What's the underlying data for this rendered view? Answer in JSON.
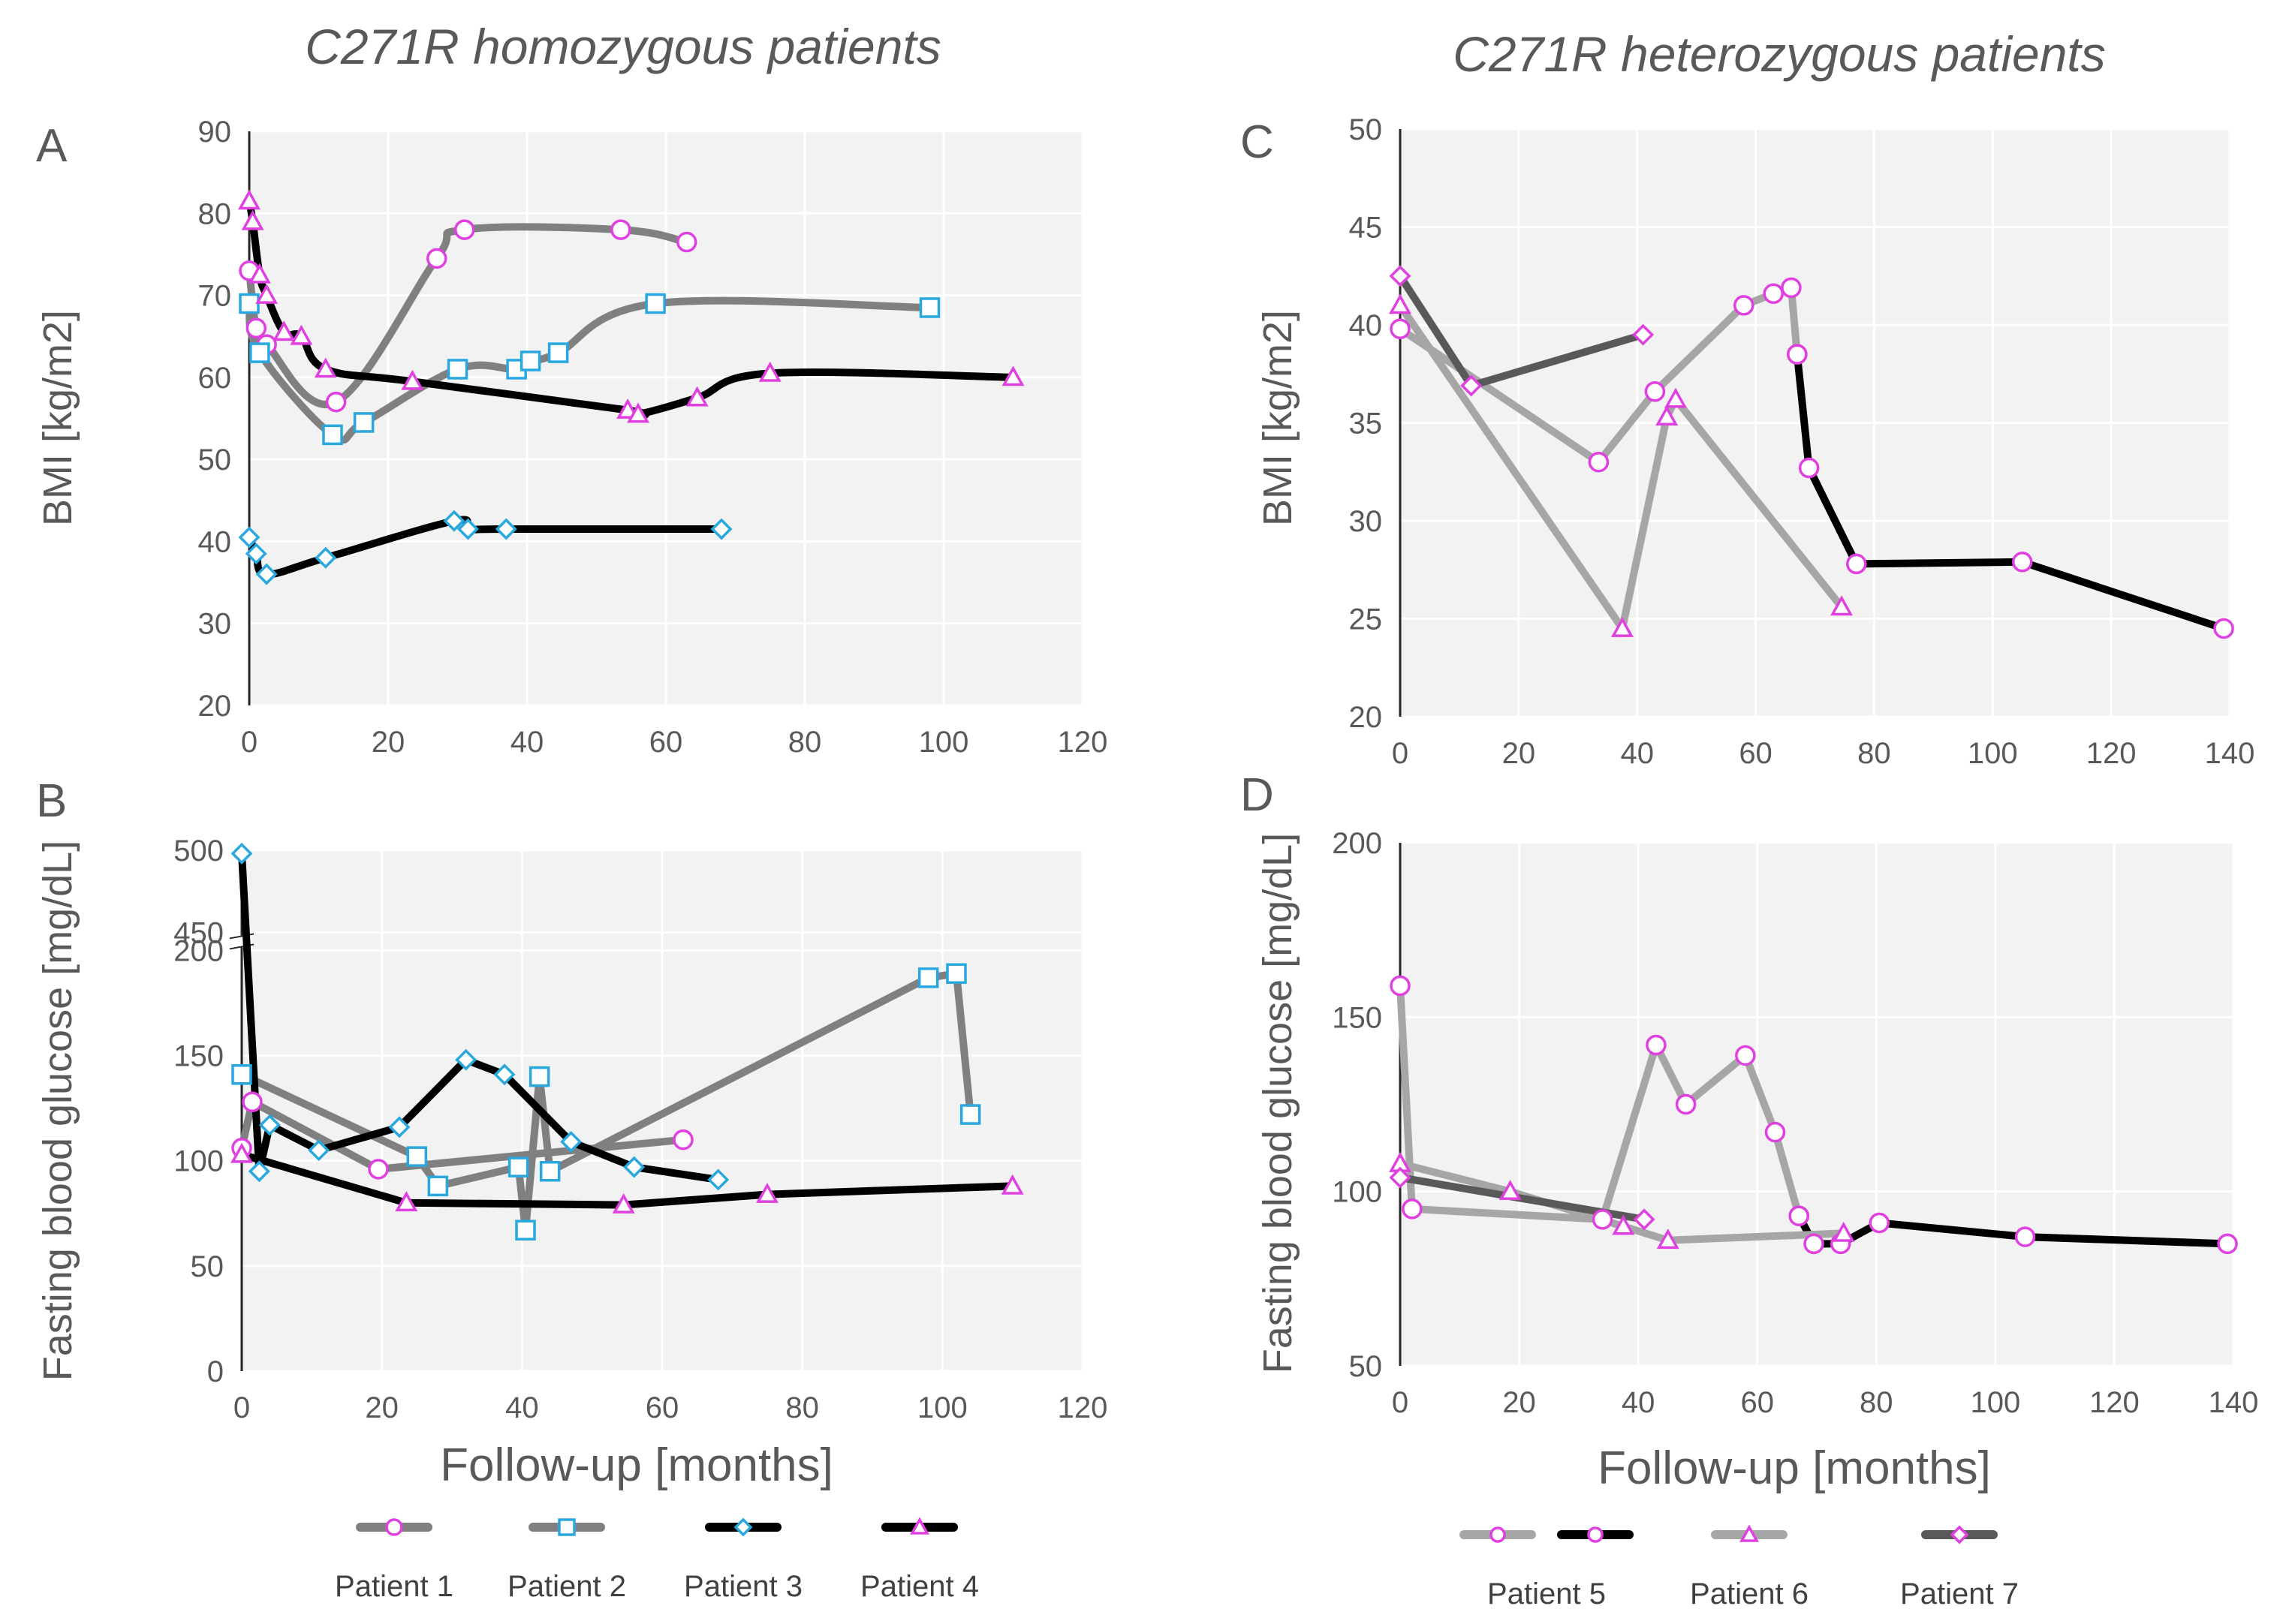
{
  "titles": {
    "homozygous": "C271R homozygous patients",
    "heterozygous": "C271R heterozygous patients"
  },
  "colors": {
    "plot_bg": "#f2f2f2",
    "gridline": "#ffffff",
    "axis": "#262626",
    "marker_edge_magenta": "#e040e0",
    "marker_edge_cyan": "#29a8e0",
    "line_black": "#000000",
    "line_dark_gray": "#595959",
    "line_mid_gray": "#808080",
    "line_light_gray": "#a6a6a6"
  },
  "legends": {
    "left": [
      {
        "label": "Patient 1",
        "marker": "circle",
        "line": "mid-gray",
        "edge": "magenta"
      },
      {
        "label": "Patient 2",
        "marker": "square",
        "line": "mid-gray",
        "edge": "cyan"
      },
      {
        "label": "Patient 3",
        "marker": "diamond",
        "line": "black",
        "edge": "cyan"
      },
      {
        "label": "Patient 4",
        "marker": "triangle",
        "line": "black",
        "edge": "magenta"
      }
    ],
    "right": [
      {
        "label": "Patient 5",
        "marker": "circle",
        "line": "light-gray+black",
        "edge": "magenta"
      },
      {
        "label": "Patient 6",
        "marker": "triangle",
        "line": "light-gray",
        "edge": "magenta"
      },
      {
        "label": "Patient 7",
        "marker": "diamond",
        "line": "dark-gray",
        "edge": "magenta"
      }
    ]
  },
  "chart_data": [
    {
      "panel": "A",
      "type": "line",
      "smooth": true,
      "xlabel": "",
      "ylabel": "BMI [kg/m2]",
      "xlim": [
        0,
        120
      ],
      "ylim": [
        20,
        90
      ],
      "xticks": [
        0,
        20,
        40,
        60,
        80,
        100,
        120
      ],
      "yticks": [
        20,
        30,
        40,
        50,
        60,
        70,
        80,
        90
      ],
      "series": [
        {
          "name": "Patient 1",
          "marker": "circle",
          "line": "mid-gray",
          "x": [
            0,
            1,
            2.5,
            12.5,
            27,
            31,
            53.5,
            63
          ],
          "y": [
            73,
            66,
            64,
            57,
            74.5,
            78,
            78,
            76.5
          ]
        },
        {
          "name": "Patient 2",
          "marker": "square",
          "line": "mid-gray",
          "x": [
            0,
            1.5,
            12,
            16.5,
            30,
            38.5,
            40.5,
            44.5,
            58.5,
            98
          ],
          "y": [
            69,
            63,
            53,
            54.5,
            61,
            61,
            62,
            63,
            69,
            68.5
          ]
        },
        {
          "name": "Patient 3",
          "marker": "diamond",
          "line": "black",
          "x": [
            0,
            1,
            2.5,
            11,
            29.5,
            31.5,
            37,
            68
          ],
          "y": [
            40.5,
            38.5,
            36,
            38,
            42.5,
            41.5,
            41.5,
            41.5
          ]
        },
        {
          "name": "Patient 4",
          "marker": "triangle",
          "line": "black",
          "x": [
            0,
            0.5,
            1.5,
            2.5,
            5,
            7.5,
            11,
            23.5,
            54.5,
            56,
            64.5,
            75,
            110
          ],
          "y": [
            81.5,
            79,
            72.5,
            70,
            65.5,
            65,
            61,
            59.5,
            56,
            55.5,
            57.5,
            60.5,
            60
          ]
        }
      ]
    },
    {
      "panel": "B",
      "type": "line",
      "smooth": false,
      "xlabel": "Follow-up [months]",
      "ylabel": "Fasting blood glucose [mg/dL]",
      "xlim": [
        0,
        120
      ],
      "ylim": [
        0,
        500
      ],
      "axis_break": [
        200,
        450
      ],
      "xticks": [
        0,
        20,
        40,
        60,
        80,
        100,
        120
      ],
      "yticks": [
        0,
        50,
        100,
        150,
        200,
        450,
        500
      ],
      "series": [
        {
          "name": "Patient 1",
          "marker": "circle",
          "line": "mid-gray",
          "x": [
            0,
            1.5,
            19.5,
            63
          ],
          "y": [
            106,
            128,
            96,
            110
          ]
        },
        {
          "name": "Patient 2",
          "marker": "square",
          "line": "mid-gray",
          "x": [
            0,
            25,
            28,
            39.5,
            40.5,
            42.5,
            44,
            98,
            102,
            104
          ],
          "y": [
            141,
            102,
            88,
            97,
            67,
            140,
            95,
            187,
            189,
            122
          ]
        },
        {
          "name": "Patient 3",
          "marker": "diamond",
          "line": "black",
          "x": [
            0,
            2.5,
            4,
            11,
            22.5,
            32,
            37.5,
            47,
            56,
            68
          ],
          "y": [
            498,
            95,
            117,
            105,
            116,
            148,
            141,
            109,
            97,
            91
          ]
        },
        {
          "name": "Patient 4",
          "marker": "triangle",
          "line": "black",
          "x": [
            0,
            23.5,
            54.5,
            75,
            110
          ],
          "y": [
            103,
            80,
            79,
            84,
            88
          ]
        }
      ]
    },
    {
      "panel": "C",
      "type": "line",
      "smooth": false,
      "xlabel": "",
      "ylabel": "BMI [kg/m2]",
      "xlim": [
        0,
        140
      ],
      "ylim": [
        20,
        50
      ],
      "xticks": [
        0,
        20,
        40,
        60,
        80,
        100,
        120,
        140
      ],
      "yticks": [
        20,
        25,
        30,
        35,
        40,
        45,
        50
      ],
      "series": [
        {
          "name": "Patient 5",
          "marker": "circle",
          "line": "light-gray",
          "x": [
            0,
            33.5,
            43,
            58,
            63,
            66,
            67
          ],
          "y": [
            39.8,
            33,
            36.6,
            41,
            41.6,
            41.9,
            38.5
          ]
        },
        {
          "name": "Patient 5",
          "marker": "circle",
          "line": "black",
          "x": [
            67,
            69,
            77,
            105,
            139
          ],
          "y": [
            38.5,
            32.7,
            27.8,
            27.9,
            24.5
          ]
        },
        {
          "name": "Patient 6",
          "marker": "triangle",
          "line": "light-gray",
          "x": [
            0,
            37.5,
            45,
            46.5,
            74.5
          ],
          "y": [
            41,
            24.5,
            35.3,
            36.2,
            25.6
          ]
        },
        {
          "name": "Patient 7",
          "marker": "diamond",
          "line": "dark-gray",
          "x": [
            0,
            12,
            41
          ],
          "y": [
            42.5,
            36.9,
            39.5
          ]
        }
      ]
    },
    {
      "panel": "D",
      "type": "line",
      "smooth": false,
      "xlabel": "Follow-up [months]",
      "ylabel": "Fasting blood glucose [mg/dL]",
      "xlim": [
        0,
        140
      ],
      "ylim": [
        50,
        200
      ],
      "xticks": [
        0,
        20,
        40,
        60,
        80,
        100,
        120,
        140
      ],
      "yticks": [
        50,
        100,
        150,
        200
      ],
      "series": [
        {
          "name": "Patient 5",
          "marker": "circle",
          "line": "light-gray",
          "x": [
            0,
            2,
            34,
            43,
            48,
            58,
            63,
            67
          ],
          "y": [
            159,
            95,
            92,
            142,
            125,
            139,
            117,
            93
          ]
        },
        {
          "name": "Patient 5",
          "marker": "circle",
          "line": "black",
          "x": [
            67,
            69.5,
            74,
            80.5,
            105,
            139
          ],
          "y": [
            93,
            85,
            85,
            91,
            87,
            85
          ]
        },
        {
          "name": "Patient 6",
          "marker": "triangle",
          "line": "light-gray",
          "x": [
            0,
            18.5,
            37.5,
            45,
            74.5
          ],
          "y": [
            108,
            100,
            90,
            86,
            88
          ]
        },
        {
          "name": "Patient 7",
          "marker": "diamond",
          "line": "dark-gray",
          "x": [
            0,
            41
          ],
          "y": [
            104,
            92
          ]
        }
      ]
    }
  ]
}
